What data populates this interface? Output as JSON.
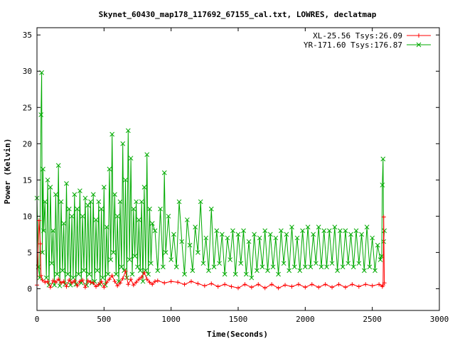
{
  "chart_data": {
    "type": "line",
    "title": "Skynet_60430_map178_117692_67155_cal.txt, LOWRES, declatmap",
    "xlabel": "Time(Seconds)",
    "ylabel": "Power (Kelvin)",
    "xlim": [
      0,
      3000
    ],
    "ylim": [
      -3,
      36
    ],
    "x_ticks": [
      0,
      500,
      1000,
      1500,
      2000,
      2500,
      3000
    ],
    "y_ticks": [
      0,
      5,
      10,
      15,
      20,
      25,
      30,
      35
    ],
    "grid": false,
    "legend_position": "top-right",
    "series": [
      {
        "name": "XL-25.56 Tsys:26.09",
        "color": "#ff0000",
        "marker": "plus",
        "x": [
          0,
          15,
          25,
          30,
          40,
          60,
          80,
          100,
          120,
          140,
          160,
          180,
          200,
          220,
          240,
          260,
          280,
          300,
          320,
          340,
          360,
          380,
          400,
          420,
          440,
          460,
          480,
          500,
          520,
          540,
          560,
          580,
          600,
          620,
          640,
          660,
          680,
          700,
          720,
          740,
          760,
          780,
          800,
          820,
          840,
          860,
          880,
          900,
          950,
          1000,
          1050,
          1100,
          1150,
          1200,
          1250,
          1300,
          1350,
          1400,
          1450,
          1500,
          1550,
          1600,
          1650,
          1700,
          1750,
          1800,
          1850,
          1900,
          1950,
          2000,
          2050,
          2100,
          2150,
          2200,
          2250,
          2300,
          2350,
          2400,
          2450,
          2500,
          2550,
          2575,
          2580,
          2585,
          2590
        ],
        "y": [
          0.5,
          9.4,
          6.2,
          1.8,
          1.2,
          0.9,
          1.0,
          0.2,
          1.1,
          0.9,
          1.3,
          0.8,
          1.0,
          0.3,
          1.2,
          0.8,
          1.1,
          0.4,
          1.0,
          1.2,
          0.2,
          1.1,
          0.9,
          0.8,
          0.3,
          0.6,
          1.0,
          0.2,
          0.9,
          1.3,
          1.8,
          1.0,
          0.4,
          0.8,
          1.4,
          2.4,
          0.6,
          1.3,
          0.5,
          0.9,
          1.3,
          1.6,
          2.2,
          1.3,
          0.9,
          0.6,
          1.0,
          1.1,
          0.8,
          1.0,
          0.9,
          0.6,
          1.0,
          0.7,
          0.4,
          0.7,
          0.3,
          0.6,
          0.3,
          0.1,
          0.6,
          0.2,
          0.6,
          0.1,
          0.6,
          0.1,
          0.5,
          0.3,
          0.6,
          0.2,
          0.6,
          0.2,
          0.6,
          0.2,
          0.6,
          0.2,
          0.6,
          0.3,
          0.6,
          0.4,
          0.6,
          0.3,
          0.5,
          9.9,
          0.8
        ]
      },
      {
        "name": "YR-171.60 Tsys:176.87",
        "color": "#00aa00",
        "marker": "cross",
        "x": [
          0,
          10,
          20,
          30,
          35,
          40,
          45,
          50,
          60,
          70,
          80,
          90,
          100,
          110,
          120,
          130,
          140,
          150,
          160,
          170,
          180,
          190,
          200,
          210,
          220,
          230,
          240,
          250,
          260,
          270,
          280,
          290,
          300,
          310,
          320,
          330,
          340,
          350,
          360,
          370,
          380,
          390,
          400,
          410,
          420,
          430,
          440,
          450,
          460,
          470,
          480,
          490,
          500,
          510,
          520,
          530,
          540,
          550,
          560,
          570,
          580,
          590,
          600,
          610,
          620,
          630,
          640,
          650,
          660,
          670,
          680,
          690,
          700,
          710,
          720,
          730,
          740,
          750,
          760,
          770,
          780,
          790,
          800,
          810,
          820,
          830,
          840,
          850,
          860,
          880,
          900,
          920,
          940,
          950,
          960,
          980,
          1000,
          1020,
          1040,
          1060,
          1080,
          1100,
          1120,
          1140,
          1160,
          1180,
          1200,
          1220,
          1240,
          1260,
          1280,
          1300,
          1320,
          1340,
          1360,
          1380,
          1400,
          1420,
          1440,
          1460,
          1480,
          1500,
          1520,
          1540,
          1560,
          1580,
          1600,
          1620,
          1640,
          1660,
          1680,
          1700,
          1720,
          1740,
          1760,
          1780,
          1800,
          1820,
          1840,
          1860,
          1880,
          1900,
          1920,
          1940,
          1960,
          1980,
          2000,
          2020,
          2040,
          2060,
          2080,
          2100,
          2120,
          2140,
          2160,
          2180,
          2200,
          2220,
          2240,
          2260,
          2280,
          2300,
          2320,
          2340,
          2360,
          2380,
          2400,
          2420,
          2440,
          2460,
          2480,
          2500,
          2520,
          2540,
          2560,
          2570,
          2575,
          2580,
          2585,
          2590
        ],
        "y": [
          12.5,
          3.0,
          1.5,
          24.0,
          29.8,
          5.0,
          16.5,
          8.0,
          12.0,
          1.5,
          15.0,
          0.5,
          14.0,
          3.5,
          8.0,
          0.5,
          13.0,
          2.0,
          17.0,
          0.4,
          12.0,
          2.5,
          9.0,
          0.6,
          14.5,
          2.0,
          11.0,
          0.5,
          10.0,
          1.5,
          13.0,
          0.6,
          11.0,
          2.0,
          13.5,
          0.8,
          10.0,
          2.5,
          12.5,
          0.5,
          11.5,
          2.0,
          12.0,
          0.8,
          13.0,
          1.0,
          9.5,
          2.5,
          12.0,
          0.6,
          11.0,
          1.5,
          14.0,
          0.5,
          8.5,
          2.0,
          16.5,
          4.0,
          21.3,
          5.0,
          13.0,
          2.0,
          10.0,
          1.0,
          12.0,
          3.0,
          20.0,
          2.5,
          15.0,
          1.5,
          21.8,
          4.0,
          18.0,
          2.0,
          11.0,
          4.5,
          12.0,
          3.0,
          9.5,
          2.5,
          12.0,
          1.0,
          14.0,
          2.5,
          18.5,
          2.0,
          11.0,
          3.5,
          9.0,
          8.0,
          2.5,
          11.0,
          3.0,
          16.0,
          5.0,
          10.0,
          4.0,
          7.5,
          3.0,
          12.0,
          6.5,
          2.0,
          9.5,
          6.0,
          2.5,
          8.5,
          5.0,
          12.0,
          3.5,
          7.0,
          2.5,
          11.0,
          3.0,
          8.0,
          3.5,
          7.5,
          2.0,
          7.0,
          4.0,
          8.0,
          2.0,
          7.5,
          3.5,
          8.0,
          2.0,
          6.5,
          1.5,
          7.5,
          2.5,
          7.0,
          3.0,
          8.0,
          2.5,
          7.5,
          3.0,
          7.0,
          2.0,
          8.0,
          3.5,
          7.5,
          2.5,
          8.5,
          3.0,
          7.0,
          2.5,
          8.0,
          3.0,
          8.5,
          3.0,
          7.5,
          3.5,
          8.5,
          3.0,
          8.0,
          3.0,
          8.0,
          3.5,
          8.5,
          2.5,
          8.0,
          3.0,
          8.0,
          3.5,
          7.5,
          3.0,
          8.0,
          3.5,
          7.5,
          2.5,
          8.5,
          3.0,
          7.0,
          2.5,
          6.0,
          4.0,
          4.5,
          14.3,
          17.9,
          6.5,
          8.0
        ]
      }
    ]
  }
}
